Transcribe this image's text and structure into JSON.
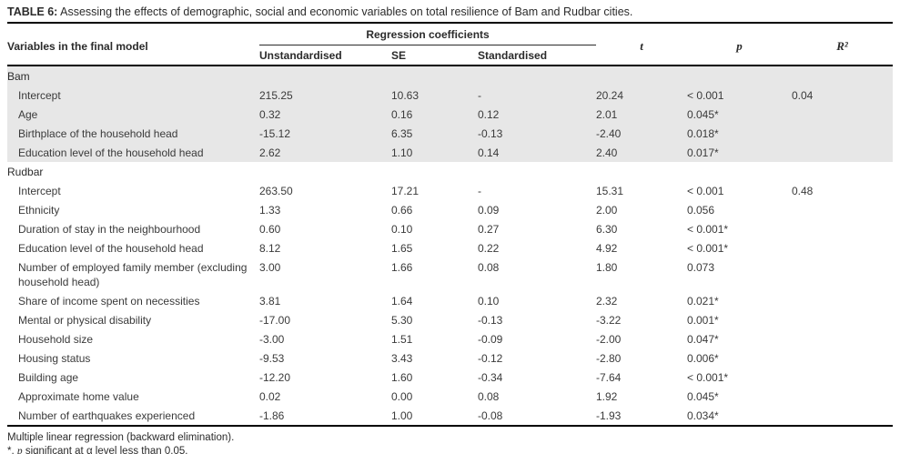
{
  "title": {
    "label": "TABLE 6:",
    "text": " Assessing the effects of demographic, social and economic variables on total resilience of Bam and Rudbar cities."
  },
  "table": {
    "variable_header": "Variables in the final model",
    "group_header": "Regression coefficients",
    "subheaders": [
      "Unstandardised",
      "SE",
      "Standardised"
    ],
    "stat_headers": [
      "t",
      "p",
      "R²"
    ],
    "sections": [
      {
        "name": "Bam",
        "shaded": true,
        "rows": [
          {
            "variable": "Intercept",
            "unstandardised": "215.25",
            "se": "10.63",
            "standardised": "-",
            "t": "20.24",
            "p": "< 0.001",
            "r2": "0.04"
          },
          {
            "variable": "Age",
            "unstandardised": "0.32",
            "se": "0.16",
            "standardised": "0.12",
            "t": "2.01",
            "p": "0.045*",
            "r2": ""
          },
          {
            "variable": "Birthplace of the household head",
            "unstandardised": "-15.12",
            "se": "6.35",
            "standardised": "-0.13",
            "t": "-2.40",
            "p": "0.018*",
            "r2": ""
          },
          {
            "variable": "Education level of the household head",
            "unstandardised": "2.62",
            "se": "1.10",
            "standardised": "0.14",
            "t": "2.40",
            "p": "0.017*",
            "r2": ""
          }
        ]
      },
      {
        "name": "Rudbar",
        "shaded": false,
        "rows": [
          {
            "variable": "Intercept",
            "unstandardised": "263.50",
            "se": "17.21",
            "standardised": "-",
            "t": "15.31",
            "p": "< 0.001",
            "r2": "0.48"
          },
          {
            "variable": "Ethnicity",
            "unstandardised": "1.33",
            "se": "0.66",
            "standardised": "0.09",
            "t": "2.00",
            "p": "0.056",
            "r2": ""
          },
          {
            "variable": "Duration of stay in the neighbourhood",
            "unstandardised": "0.60",
            "se": "0.10",
            "standardised": "0.27",
            "t": "6.30",
            "p": "< 0.001*",
            "r2": ""
          },
          {
            "variable": "Education level of the household head",
            "unstandardised": "8.12",
            "se": "1.65",
            "standardised": "0.22",
            "t": "4.92",
            "p": "< 0.001*",
            "r2": ""
          },
          {
            "variable": "Number of employed family member (excluding household head)",
            "unstandardised": "3.00",
            "se": "1.66",
            "standardised": "0.08",
            "t": "1.80",
            "p": "0.073",
            "r2": ""
          },
          {
            "variable": "Share of income spent on necessities",
            "unstandardised": "3.81",
            "se": "1.64",
            "standardised": "0.10",
            "t": "2.32",
            "p": "0.021*",
            "r2": ""
          },
          {
            "variable": "Mental or physical disability",
            "unstandardised": "-17.00",
            "se": "5.30",
            "standardised": "-0.13",
            "t": "-3.22",
            "p": "0.001*",
            "r2": ""
          },
          {
            "variable": "Household size",
            "unstandardised": "-3.00",
            "se": "1.51",
            "standardised": "-0.09",
            "t": "-2.00",
            "p": "0.047*",
            "r2": ""
          },
          {
            "variable": "Housing status",
            "unstandardised": "-9.53",
            "se": "3.43",
            "standardised": "-0.12",
            "t": "-2.80",
            "p": "0.006*",
            "r2": ""
          },
          {
            "variable": "Building age",
            "unstandardised": "-12.20",
            "se": "1.60",
            "standardised": "-0.34",
            "t": "-7.64",
            "p": "< 0.001*",
            "r2": ""
          },
          {
            "variable": "Approximate home value",
            "unstandardised": "0.02",
            "se": "0.00",
            "standardised": "0.08",
            "t": "1.92",
            "p": "0.045*",
            "r2": ""
          },
          {
            "variable": "Number of earthquakes experienced",
            "unstandardised": "-1.86",
            "se": "1.00",
            "standardised": "-0.08",
            "t": "-1.93",
            "p": "0.034*",
            "r2": ""
          }
        ]
      }
    ]
  },
  "footnotes": {
    "line1": "Multiple linear regression (backward elimination).",
    "line2": {
      "prefix": "*, ",
      "italic": "p",
      "suffix": " significant at α level less than 0.05."
    }
  }
}
